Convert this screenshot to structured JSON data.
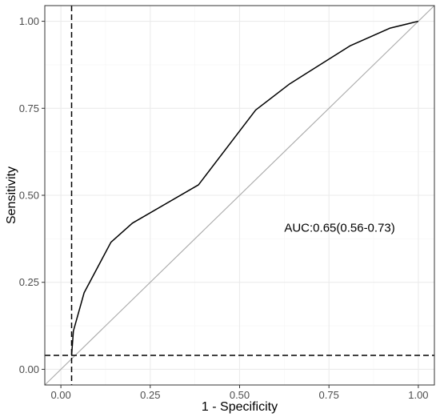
{
  "chart_data": {
    "type": "line",
    "title": "",
    "xlabel": "1 - Specificity",
    "ylabel": "Sensitivity",
    "xlim": [
      0,
      1
    ],
    "ylim": [
      0,
      1
    ],
    "x_ticks": [
      "0.00",
      "0.25",
      "0.50",
      "0.75",
      "1.00"
    ],
    "y_ticks": [
      "0.00",
      "0.25",
      "0.50",
      "0.75",
      "1.00"
    ],
    "grid": true,
    "legend": "none",
    "annotation": "AUC:0.65(0.56-0.73)",
    "series": [
      {
        "x": [
          0.03,
          0.035,
          0.065,
          0.14,
          0.2,
          0.385,
          0.545,
          0.64,
          0.81,
          0.92,
          1.0
        ],
        "y": [
          0.04,
          0.11,
          0.22,
          0.365,
          0.42,
          0.53,
          0.745,
          0.82,
          0.93,
          0.98,
          1.0
        ],
        "color": "#000000"
      }
    ],
    "reference_line": {
      "x": [
        0,
        1
      ],
      "y": [
        0,
        1
      ],
      "color": "#aaaaaa"
    },
    "threshold_lines": {
      "vertical_x": 0.03,
      "horizontal_y": 0.04,
      "style": "dashed",
      "color": "#000000"
    },
    "colors": {
      "panel_border": "#333333",
      "grid_major": "#ebebeb",
      "grid_minor": "#f5f5f5",
      "tick_text": "#4d4d4d"
    }
  }
}
